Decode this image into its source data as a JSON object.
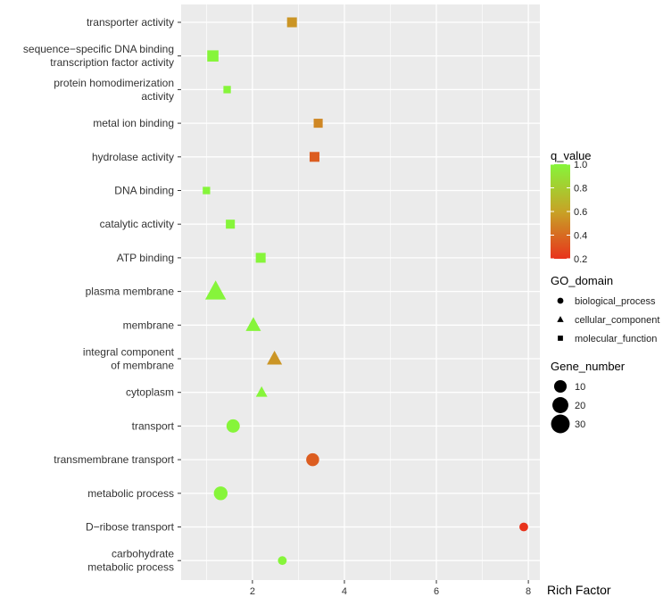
{
  "chart_data": {
    "type": "scatter",
    "title": "",
    "xlabel": "Rich Factor",
    "ylabel": "",
    "xlim": [
      0.45,
      8.25
    ],
    "xticks": [
      2,
      4,
      6,
      8
    ],
    "grid": true,
    "categories": [
      {
        "id": "transporter-activity",
        "lines": [
          "transporter activity"
        ]
      },
      {
        "id": "sequence-specific-dna-binding",
        "lines": [
          "sequence−specific DNA binding",
          "transcription factor activity"
        ]
      },
      {
        "id": "protein-homodimerization-activity",
        "lines": [
          "protein homodimerization",
          "activity"
        ]
      },
      {
        "id": "metal-ion-binding",
        "lines": [
          "metal ion binding"
        ]
      },
      {
        "id": "hydrolase-activity",
        "lines": [
          "hydrolase activity"
        ]
      },
      {
        "id": "dna-binding",
        "lines": [
          "DNA binding"
        ]
      },
      {
        "id": "catalytic-activity",
        "lines": [
          "catalytic activity"
        ]
      },
      {
        "id": "atp-binding",
        "lines": [
          "ATP binding"
        ]
      },
      {
        "id": "plasma-membrane",
        "lines": [
          "plasma membrane"
        ]
      },
      {
        "id": "membrane",
        "lines": [
          "membrane"
        ]
      },
      {
        "id": "integral-component-of-membrane",
        "lines": [
          "integral component",
          "of membrane"
        ]
      },
      {
        "id": "cytoplasm",
        "lines": [
          "cytoplasm"
        ]
      },
      {
        "id": "transport",
        "lines": [
          "transport"
        ]
      },
      {
        "id": "transmembrane-transport",
        "lines": [
          "transmembrane transport"
        ]
      },
      {
        "id": "metabolic-process",
        "lines": [
          "metabolic process"
        ]
      },
      {
        "id": "d-ribose-transport",
        "lines": [
          "D−ribose transport"
        ]
      },
      {
        "id": "carbohydrate-metabolic-process",
        "lines": [
          "carbohydrate",
          "metabolic process"
        ]
      }
    ],
    "points": [
      {
        "term": "transporter-activity",
        "rich_factor": 2.86,
        "q_value": 0.55,
        "domain": "molecular_function",
        "gene_number": 8
      },
      {
        "term": "sequence-specific-dna-binding",
        "rich_factor": 1.14,
        "q_value": 1.0,
        "domain": "molecular_function",
        "gene_number": 12
      },
      {
        "term": "protein-homodimerization-activity",
        "rich_factor": 1.45,
        "q_value": 1.0,
        "domain": "molecular_function",
        "gene_number": 3
      },
      {
        "term": "metal-ion-binding",
        "rich_factor": 3.43,
        "q_value": 0.5,
        "domain": "molecular_function",
        "gene_number": 6
      },
      {
        "term": "hydrolase-activity",
        "rich_factor": 3.35,
        "q_value": 0.35,
        "domain": "molecular_function",
        "gene_number": 8
      },
      {
        "term": "dna-binding",
        "rich_factor": 1.0,
        "q_value": 1.0,
        "domain": "molecular_function",
        "gene_number": 3
      },
      {
        "term": "catalytic-activity",
        "rich_factor": 1.52,
        "q_value": 1.0,
        "domain": "molecular_function",
        "gene_number": 6
      },
      {
        "term": "atp-binding",
        "rich_factor": 2.18,
        "q_value": 1.0,
        "domain": "molecular_function",
        "gene_number": 8
      },
      {
        "term": "plasma-membrane",
        "rich_factor": 1.2,
        "q_value": 1.0,
        "domain": "cellular_component",
        "gene_number": 33
      },
      {
        "term": "membrane",
        "rich_factor": 2.02,
        "q_value": 1.0,
        "domain": "cellular_component",
        "gene_number": 14
      },
      {
        "term": "integral-component-of-membrane",
        "rich_factor": 2.48,
        "q_value": 0.55,
        "domain": "cellular_component",
        "gene_number": 14
      },
      {
        "term": "cytoplasm",
        "rich_factor": 2.2,
        "q_value": 1.0,
        "domain": "cellular_component",
        "gene_number": 6
      },
      {
        "term": "transport",
        "rich_factor": 1.58,
        "q_value": 1.0,
        "domain": "biological_process",
        "gene_number": 12
      },
      {
        "term": "transmembrane-transport",
        "rich_factor": 3.31,
        "q_value": 0.35,
        "domain": "biological_process",
        "gene_number": 11
      },
      {
        "term": "metabolic-process",
        "rich_factor": 1.31,
        "q_value": 1.0,
        "domain": "biological_process",
        "gene_number": 13
      },
      {
        "term": "d-ribose-transport",
        "rich_factor": 7.9,
        "q_value": 0.2,
        "domain": "biological_process",
        "gene_number": 3
      },
      {
        "term": "carbohydrate-metabolic-process",
        "rich_factor": 2.65,
        "q_value": 1.0,
        "domain": "biological_process",
        "gene_number": 3
      }
    ],
    "color_legend": {
      "title": "q_value",
      "range": [
        0.2,
        1.0
      ],
      "ticks": [
        "1.0",
        "0.8",
        "0.6",
        "0.4",
        "0.2"
      ],
      "low_color": "#e8331c",
      "mid_color": "#c7a326",
      "high_color": "#86f53a"
    },
    "shape_legend": {
      "title": "GO_domain",
      "items": [
        {
          "label": "biological_process",
          "shape": "circle"
        },
        {
          "label": "cellular_component",
          "shape": "triangle"
        },
        {
          "label": "molecular_function",
          "shape": "square"
        }
      ]
    },
    "size_legend": {
      "title": "Gene_number",
      "items": [
        {
          "label": "10",
          "value": 10
        },
        {
          "label": "20",
          "value": 20
        },
        {
          "label": "30",
          "value": 30
        }
      ]
    }
  },
  "colors": {
    "panel_bg": "#ebebeb",
    "grid": "#ffffff",
    "tick": "#333333"
  }
}
